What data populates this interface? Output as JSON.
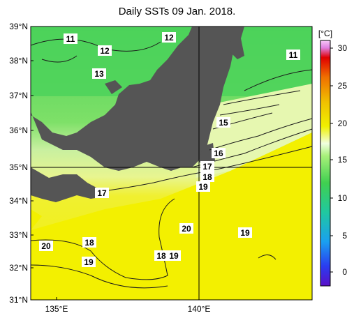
{
  "title": "Daily SSTs 09 Jan. 2018.",
  "lat_labels": [
    "39°N",
    "38°N",
    "37°N",
    "36°N",
    "35°N",
    "34°N",
    "33°N",
    "32°N",
    "31°N"
  ],
  "lon_labels": [
    "135°E",
    "140°E"
  ],
  "colorbar": {
    "unit": "[°C]",
    "ticks": [
      "30",
      "25",
      "20",
      "15",
      "10",
      "5",
      "0"
    ]
  },
  "isotherm_labels": [
    {
      "text": "11"
    },
    {
      "text": "12"
    },
    {
      "text": "13"
    },
    {
      "text": "12"
    },
    {
      "text": "11"
    },
    {
      "text": "15"
    },
    {
      "text": "16"
    },
    {
      "text": "17"
    },
    {
      "text": "18"
    },
    {
      "text": "19"
    },
    {
      "text": "17"
    },
    {
      "text": "20"
    },
    {
      "text": "19"
    },
    {
      "text": "20"
    },
    {
      "text": "18"
    },
    {
      "text": "19"
    },
    {
      "text": "18"
    },
    {
      "text": "19"
    }
  ],
  "colors": {
    "land": "#555555",
    "cold_sea": "#4cd25a",
    "mid_sea": "#d8f58c",
    "warm_sea": "#f3f000"
  }
}
